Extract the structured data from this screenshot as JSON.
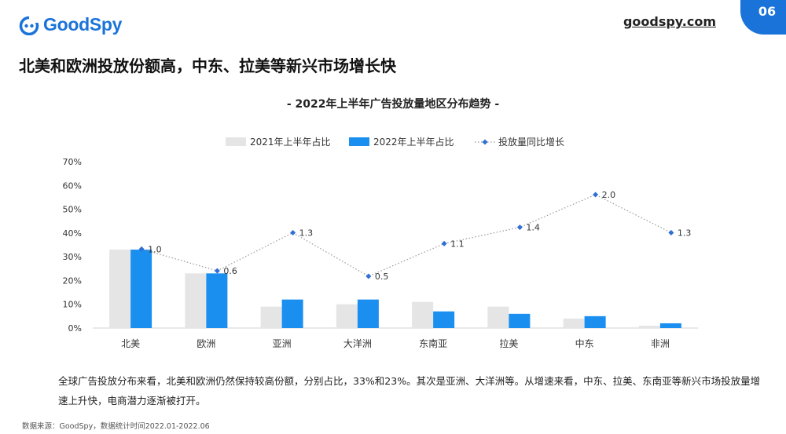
{
  "header": {
    "brand": "GoodSpy",
    "site": "goodspy.com",
    "page_number": "06",
    "headline": "北美和欧洲投放份额高，中东、拉美等新兴市场增长快"
  },
  "colors": {
    "series_2021": "#e5e5e5",
    "series_2022": "#1a8ff0",
    "growth_line": "#999999",
    "growth_marker": "#2f6fd6",
    "brand": "#1a73d9"
  },
  "chart_data": {
    "type": "bar",
    "title": "- 2022年上半年广告投放量地区分布趋势 -",
    "categories": [
      "北美",
      "欧洲",
      "亚洲",
      "大洋洲",
      "东南亚",
      "拉美",
      "中东",
      "非洲"
    ],
    "series": [
      {
        "name": "2021年上半年占比",
        "type": "bar",
        "values": [
          33,
          23,
          9,
          10,
          11,
          9,
          4,
          1
        ]
      },
      {
        "name": "2022年上半年占比",
        "type": "bar",
        "values": [
          33,
          23,
          12,
          12,
          7,
          6,
          5,
          2
        ]
      },
      {
        "name": "投放量同比增长",
        "type": "line",
        "values": [
          1.0,
          0.6,
          1.3,
          0.5,
          1.1,
          1.4,
          2.0,
          1.3
        ],
        "labels": [
          "1.0",
          "0.6",
          "1.3",
          "0.5",
          "1.1",
          "1.4",
          "2.0",
          "1.3"
        ]
      }
    ],
    "y_ticks": [
      "0%",
      "10%",
      "20%",
      "30%",
      "40%",
      "50%",
      "60%",
      "70%"
    ],
    "ylim": [
      0,
      70
    ],
    "legend_position": "top-center",
    "grid": false
  },
  "footer": {
    "summary": "全球广告投放分布来看，北美和欧洲仍然保持较高份额，分别占比，33%和23%。其次是亚洲、大洋洲等。从增速来看，中东、拉美、东南亚等新兴市场投放量增速上升快，电商潜力逐渐被打开。",
    "source": "数据来源：GoodSpy，数据统计时间2022.01-2022.06"
  }
}
